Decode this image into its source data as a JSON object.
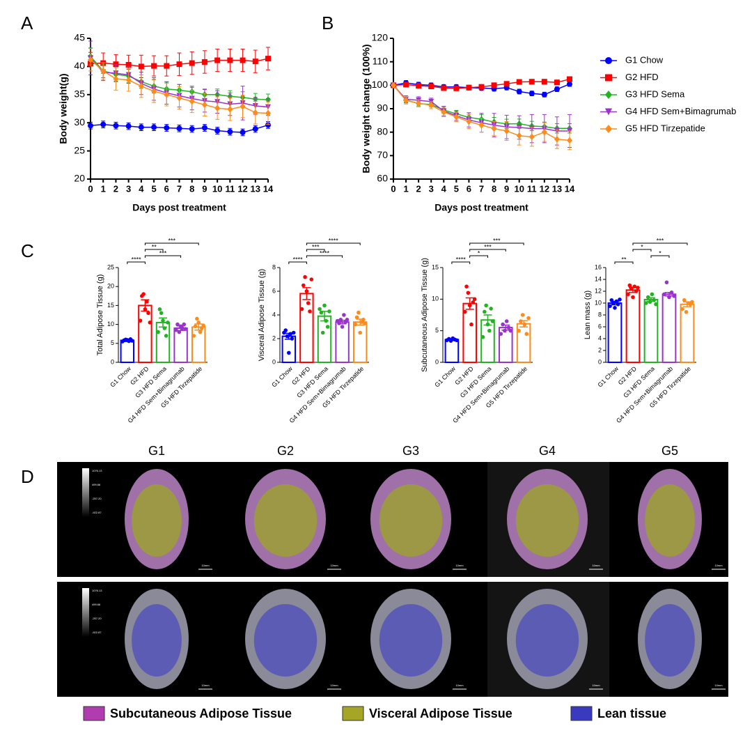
{
  "panel_labels": [
    "A",
    "B",
    "C",
    "D"
  ],
  "chart_data": [
    {
      "type": "line",
      "xlabel": "Days post treatment",
      "ylabel": "Body weight(g)",
      "x": [
        0,
        1,
        2,
        3,
        4,
        5,
        6,
        7,
        8,
        9,
        10,
        11,
        12,
        13,
        14
      ],
      "xlim": [
        0,
        14
      ],
      "xticks": [
        0,
        1,
        2,
        3,
        4,
        5,
        6,
        7,
        8,
        9,
        10,
        11,
        12,
        13,
        14
      ],
      "ylim": [
        20,
        45
      ],
      "yticks": [
        20,
        25,
        30,
        35,
        40,
        45
      ],
      "series": [
        {
          "color": "#0000ff",
          "marker": "circle",
          "values": [
            29.5,
            29.7,
            29.5,
            29.4,
            29.2,
            29.2,
            29.1,
            29.0,
            28.9,
            29.1,
            28.6,
            28.4,
            28.3,
            28.9,
            29.6
          ],
          "errors": [
            0.6,
            0.6,
            0.6,
            0.6,
            0.6,
            0.6,
            0.6,
            0.6,
            0.6,
            0.6,
            0.6,
            0.6,
            0.6,
            0.6,
            0.6
          ]
        },
        {
          "color": "#ff0000",
          "marker": "square",
          "values": [
            40.5,
            40.6,
            40.4,
            40.3,
            40.0,
            40.1,
            40.1,
            40.4,
            40.6,
            40.8,
            41.1,
            41.1,
            41.1,
            40.9,
            41.4
          ],
          "errors": [
            2,
            1.8,
            1.7,
            1.7,
            2,
            1.8,
            1.8,
            2,
            2,
            2,
            2,
            2,
            2,
            2,
            2
          ]
        },
        {
          "color": "#22b322",
          "marker": "diamond",
          "values": [
            41.8,
            39.2,
            38.6,
            38.3,
            37.3,
            36.5,
            36.0,
            35.8,
            35.5,
            35.0,
            35.0,
            34.7,
            34.5,
            34.2,
            34.1
          ],
          "errors": [
            1.5,
            1.2,
            1.2,
            1.2,
            1.2,
            1.2,
            1.2,
            1,
            1,
            1,
            1,
            1,
            1,
            1,
            1
          ]
        },
        {
          "color": "#9933cc",
          "marker": "triangle-down",
          "values": [
            41.5,
            39.0,
            38.8,
            38.5,
            37.0,
            36.0,
            35.3,
            34.8,
            34.3,
            33.9,
            33.7,
            33.3,
            33.5,
            33.0,
            32.8
          ],
          "errors": [
            3,
            1.5,
            1.5,
            1.5,
            2,
            2,
            2,
            2,
            2,
            2,
            2,
            2,
            3,
            1.5,
            1.5
          ]
        },
        {
          "color": "#ff8c1a",
          "marker": "diamond",
          "values": [
            41.2,
            39.2,
            37.8,
            37.6,
            36.5,
            35.6,
            35.0,
            34.4,
            33.8,
            33.2,
            32.6,
            32.4,
            32.9,
            31.8,
            31.7
          ],
          "errors": [
            2,
            1.5,
            2,
            2,
            2,
            2,
            2,
            2,
            2,
            2,
            2,
            2,
            2,
            2,
            2
          ]
        }
      ]
    },
    {
      "type": "line",
      "xlabel": "Days post treatment",
      "ylabel": "Body weight change (100%)",
      "legend": "right",
      "x": [
        0,
        1,
        2,
        3,
        4,
        5,
        6,
        7,
        8,
        9,
        10,
        11,
        12,
        13,
        14
      ],
      "xlim": [
        0,
        14
      ],
      "xticks": [
        0,
        1,
        2,
        3,
        4,
        5,
        6,
        7,
        8,
        9,
        10,
        11,
        12,
        13,
        14
      ],
      "ylim": [
        60,
        120
      ],
      "yticks": [
        60,
        70,
        80,
        90,
        100,
        110,
        120
      ],
      "series": [
        {
          "name": "G1 Chow",
          "color": "#0000ff",
          "marker": "circle",
          "values": [
            100,
            101,
            100.3,
            100,
            99.3,
            99.3,
            99,
            98.8,
            98.5,
            99,
            97.3,
            96.5,
            96,
            98.3,
            100.5
          ],
          "errors": [
            1,
            1,
            1,
            1,
            1,
            1,
            1,
            1,
            1,
            1,
            1,
            1,
            1,
            1,
            1
          ]
        },
        {
          "name": "G2 HFD",
          "color": "#ff0000",
          "marker": "square",
          "values": [
            100,
            100.3,
            99.8,
            99.5,
            98.8,
            98.7,
            99,
            99.3,
            100,
            100.6,
            101.4,
            101.5,
            101.5,
            101.2,
            102.6
          ],
          "errors": [
            1,
            1,
            1,
            1,
            1,
            1,
            1,
            1,
            1,
            1,
            1,
            1,
            1,
            1,
            1
          ]
        },
        {
          "name": "G3 HFD Sema",
          "color": "#22b322",
          "marker": "diamond",
          "values": [
            100,
            93.7,
            92.2,
            91.8,
            89.5,
            87.8,
            86.3,
            85.5,
            84.3,
            83.5,
            83.6,
            82.6,
            82.3,
            81.6,
            81.6
          ],
          "errors": [
            0,
            1,
            1,
            1,
            1.5,
            1.5,
            2,
            2,
            2,
            2,
            2,
            2,
            2,
            2,
            2
          ]
        },
        {
          "name": "G4 HFD Sem+Bimagrumab",
          "color": "#9933cc",
          "marker": "triangle-down",
          "values": [
            100,
            94,
            93.6,
            93,
            89,
            87,
            85.2,
            84,
            83,
            82.2,
            82,
            81.5,
            81.5,
            80.5,
            80.5
          ],
          "errors": [
            0,
            1.5,
            1.5,
            1.5,
            2,
            2,
            3,
            4,
            5,
            5,
            5,
            6,
            6,
            6,
            7
          ]
        },
        {
          "name": "G5 HFD Tirzepatide",
          "color": "#ff8c1a",
          "marker": "diamond",
          "values": [
            100,
            93.5,
            92.3,
            91.5,
            88.6,
            86.5,
            84.5,
            83,
            81.5,
            80.5,
            78.5,
            78,
            80,
            77,
            76.5
          ],
          "errors": [
            0,
            1.5,
            1.5,
            1.5,
            2,
            2,
            3,
            3,
            3,
            4,
            4,
            4,
            4,
            4,
            4
          ]
        }
      ]
    },
    {
      "type": "bar",
      "ylabel": "Total Adipose Tissue (g)",
      "ylim": [
        0,
        25
      ],
      "yticks": [
        0,
        5,
        10,
        15,
        20,
        25
      ],
      "categories": [
        "G1 Chow",
        "G2 HFD",
        "G3 HFD Sema",
        "G4 HFD Sem+Bimagrumab",
        "G5 HFD Tirzepatide"
      ],
      "colors": [
        "#0000ff",
        "#ff0000",
        "#22b322",
        "#9933cc",
        "#ff8c1a"
      ],
      "values": [
        5.8,
        15,
        10.5,
        9,
        9.3
      ],
      "errors": [
        0.3,
        1.5,
        1.2,
        0.6,
        0.8
      ],
      "points": [
        [
          5.5,
          5.8,
          6.0,
          5.9,
          5.6,
          6.1,
          5.7
        ],
        [
          11,
          17.5,
          18,
          14,
          16,
          13,
          10.5
        ],
        [
          8,
          14,
          13,
          11,
          9,
          7,
          10.5
        ],
        [
          8.5,
          10,
          8,
          9.5,
          9,
          10,
          8.8
        ],
        [
          7,
          9.5,
          11.5,
          10.5,
          8,
          9,
          9.7
        ]
      ],
      "comparisons": [
        {
          "from": 0,
          "to": 1,
          "label": "****"
        },
        {
          "from": 1,
          "to": 3,
          "label": "***"
        },
        {
          "from": 1,
          "to": 2,
          "label": "**"
        },
        {
          "from": 1,
          "to": 4,
          "label": "***"
        }
      ]
    },
    {
      "type": "bar",
      "ylabel": "Visceral Adipose Tissue (g)",
      "ylim": [
        0,
        8
      ],
      "yticks": [
        0,
        2,
        4,
        6,
        8
      ],
      "categories": [
        "G1 Chow",
        "G2 HFD",
        "G3 HFD Sema",
        "G4 HFD Sem+Bimagrumab",
        "G5 HFD Tirzepatide"
      ],
      "colors": [
        "#0000ff",
        "#ff0000",
        "#22b322",
        "#9933cc",
        "#ff8c1a"
      ],
      "values": [
        2.2,
        5.8,
        3.9,
        3.4,
        3.4
      ],
      "errors": [
        0.25,
        0.5,
        0.4,
        0.15,
        0.25
      ],
      "points": [
        [
          2.5,
          2.7,
          2.2,
          0.8,
          2.4,
          2.0,
          2.5
        ],
        [
          4.5,
          6.5,
          7.2,
          6,
          5,
          4.3,
          7
        ],
        [
          4.5,
          4.2,
          2.5,
          4.8,
          3.5,
          3.0,
          4.3
        ],
        [
          3.5,
          3.3,
          3.6,
          3.0,
          4.0,
          3.4,
          3.6
        ],
        [
          3.2,
          3.8,
          4.2,
          2.5,
          3.4,
          3.6,
          3.3
        ]
      ],
      "comparisons": [
        {
          "from": 0,
          "to": 1,
          "label": "****"
        },
        {
          "from": 1,
          "to": 3,
          "label": "****"
        },
        {
          "from": 1,
          "to": 2,
          "label": "***"
        },
        {
          "from": 1,
          "to": 4,
          "label": "****"
        }
      ]
    },
    {
      "type": "bar",
      "ylabel": "Subcutaneous Adipose Tissue (g)",
      "ylim": [
        0,
        15
      ],
      "yticks": [
        0,
        5,
        10,
        15
      ],
      "categories": [
        "G1 Chow",
        "G2 HFD",
        "G3 HFD Sema",
        "G4 HFD Sem+Bimagrumab",
        "G5 HFD Tirzepatide"
      ],
      "colors": [
        "#0000ff",
        "#ff0000",
        "#22b322",
        "#9933cc",
        "#ff8c1a"
      ],
      "values": [
        3.6,
        9.3,
        6.7,
        5.5,
        6.1
      ],
      "errors": [
        0.15,
        0.9,
        0.8,
        0.4,
        0.5
      ],
      "points": [
        [
          3.5,
          3.7,
          3.4,
          3.8,
          3.6,
          3.5
        ],
        [
          8,
          12,
          11,
          9,
          6,
          9.5,
          10
        ],
        [
          4,
          8,
          9,
          6,
          5,
          8.5,
          6.5
        ],
        [
          4.5,
          6,
          5,
          6.5,
          5.5,
          5
        ],
        [
          5,
          6.5,
          7.5,
          6,
          4.5,
          7
        ]
      ],
      "comparisons": [
        {
          "from": 0,
          "to": 1,
          "label": "****"
        },
        {
          "from": 1,
          "to": 2,
          "label": "*"
        },
        {
          "from": 1,
          "to": 3,
          "label": "***"
        },
        {
          "from": 1,
          "to": 4,
          "label": "***"
        }
      ]
    },
    {
      "type": "bar",
      "ylabel": "Lean mass (g)",
      "ylim": [
        0,
        16
      ],
      "yticks": [
        0,
        2,
        4,
        6,
        8,
        10,
        12,
        14,
        16
      ],
      "categories": [
        "G1 Chow",
        "G2 HFD",
        "G3 HFD Sema",
        "G4 HFD Sem+Bimagrumab",
        "G5 HFD Tirzepatide"
      ],
      "colors": [
        "#0000ff",
        "#ff0000",
        "#22b322",
        "#9933cc",
        "#ff8c1a"
      ],
      "values": [
        10,
        12.2,
        10.6,
        11.5,
        9.8
      ],
      "errors": [
        0.3,
        0.4,
        0.3,
        0.3,
        0.4
      ],
      "points": [
        [
          9.5,
          10.5,
          10,
          9.2,
          10.3,
          9.8,
          10.6
        ],
        [
          11.5,
          13,
          12.5,
          11,
          12.8,
          12,
          12.6
        ],
        [
          10,
          11,
          10.2,
          11.5,
          10.5,
          9.8
        ],
        [
          11.5,
          13.5,
          11,
          11.8,
          11.2
        ],
        [
          9,
          10.5,
          8.5,
          10,
          9.8,
          10.2
        ]
      ],
      "comparisons": [
        {
          "from": 0,
          "to": 1,
          "label": "**"
        },
        {
          "from": 2,
          "to": 3,
          "label": "*"
        },
        {
          "from": 1,
          "to": 2,
          "label": "*"
        },
        {
          "from": 1,
          "to": 4,
          "label": "***"
        }
      ]
    }
  ],
  "images": {
    "columns": [
      "G1",
      "G2",
      "G3",
      "G4",
      "G5"
    ],
    "colorbar_labels": [
      "1076.13",
      "499.66",
      "-257.20",
      "-922.87"
    ],
    "scale_bar": "10mm",
    "legend": [
      {
        "label": "Subcutaneous Adipose Tissue",
        "color": "#b03cb0"
      },
      {
        "label": "Visceral Adipose Tissue",
        "color": "#a6a626"
      },
      {
        "label": "Lean tissue",
        "color": "#3a3ac0"
      }
    ]
  }
}
